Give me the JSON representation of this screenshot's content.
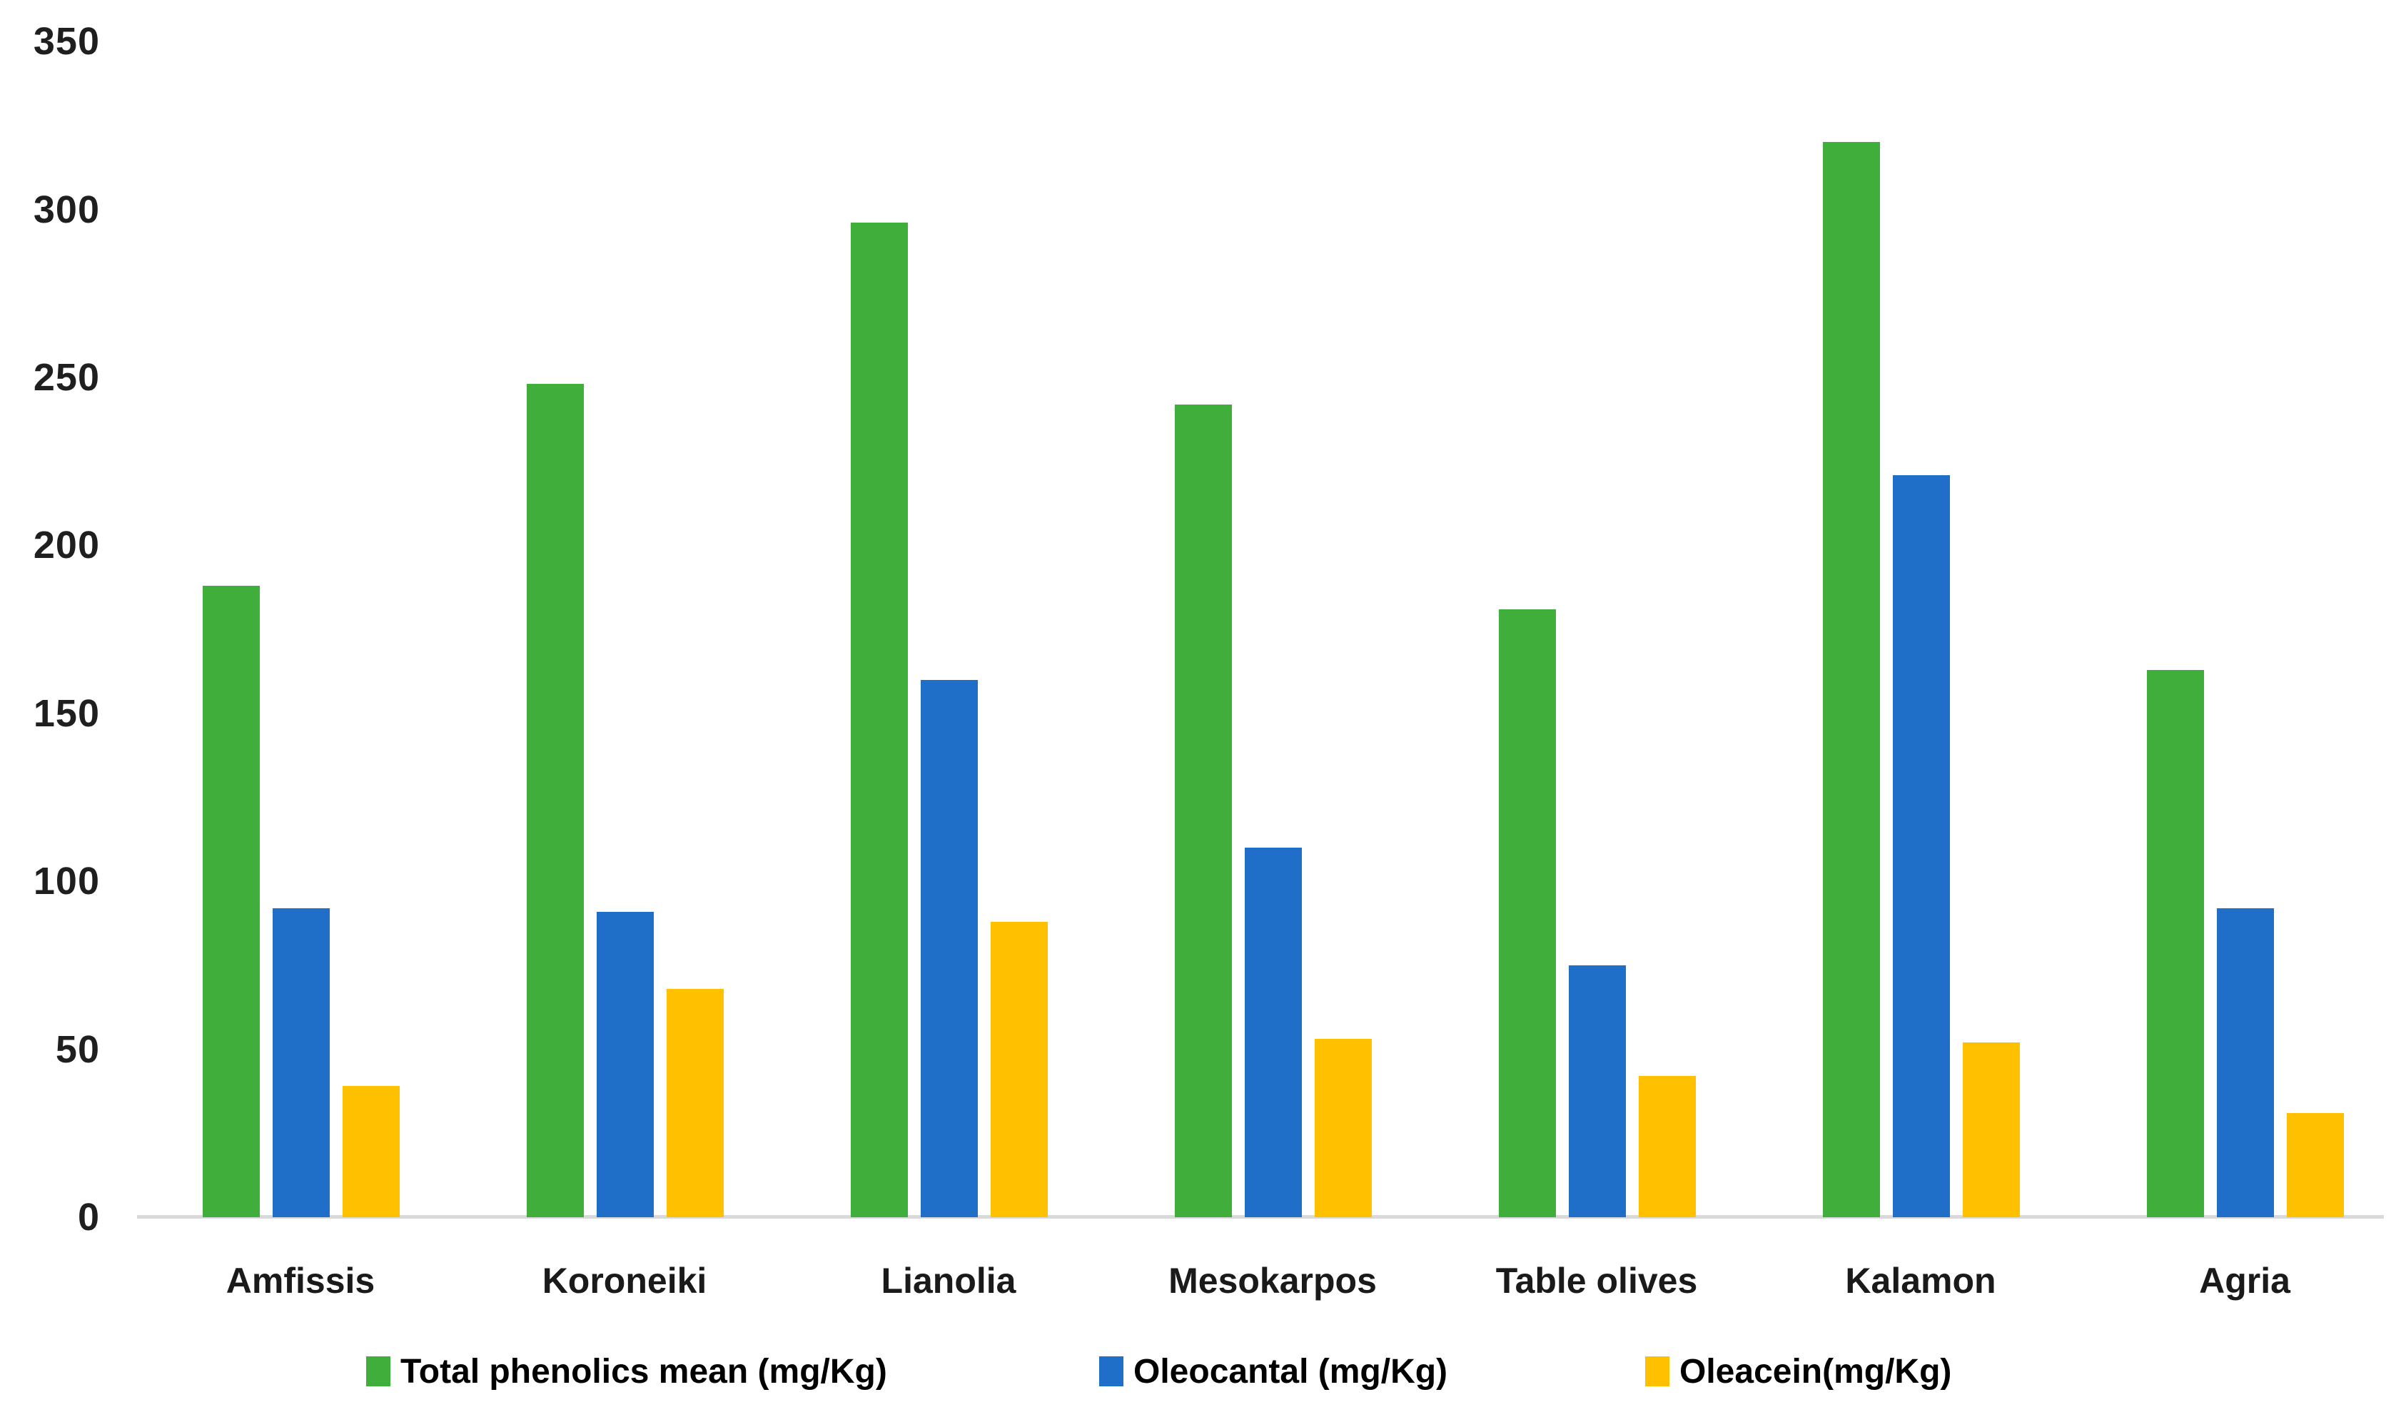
{
  "chart_data": {
    "type": "bar",
    "title": "",
    "xlabel": "",
    "ylabel": "",
    "categories": [
      "Amfissis",
      "Koroneiki",
      "Lianolia",
      "Mesokarpos",
      "Table olives",
      "Kalamon",
      "Agria"
    ],
    "series": [
      {
        "name": "Total phenolics mean (mg/Kg)",
        "color": "#3fae3a",
        "values": [
          188,
          248,
          296,
          242,
          181,
          320,
          163
        ]
      },
      {
        "name": "Oleocantal (mg/Kg)",
        "color": "#1f6fc8",
        "values": [
          92,
          91,
          160,
          110,
          75,
          221,
          92
        ]
      },
      {
        "name": "Oleacein(mg/Kg)",
        "color": "#ffc000",
        "values": [
          39,
          68,
          88,
          53,
          42,
          52,
          31
        ]
      }
    ],
    "ylim": [
      0,
      350
    ],
    "yticks": [
      0,
      50,
      100,
      150,
      200,
      250,
      300,
      350
    ],
    "grid": false,
    "legend_position": "bottom"
  },
  "colors": {
    "axis_line": "#d9d9d9",
    "tick_text": "#1f1f1f",
    "category_text": "#1a1a1a",
    "legend_text": "#000000",
    "background": "#ffffff"
  }
}
